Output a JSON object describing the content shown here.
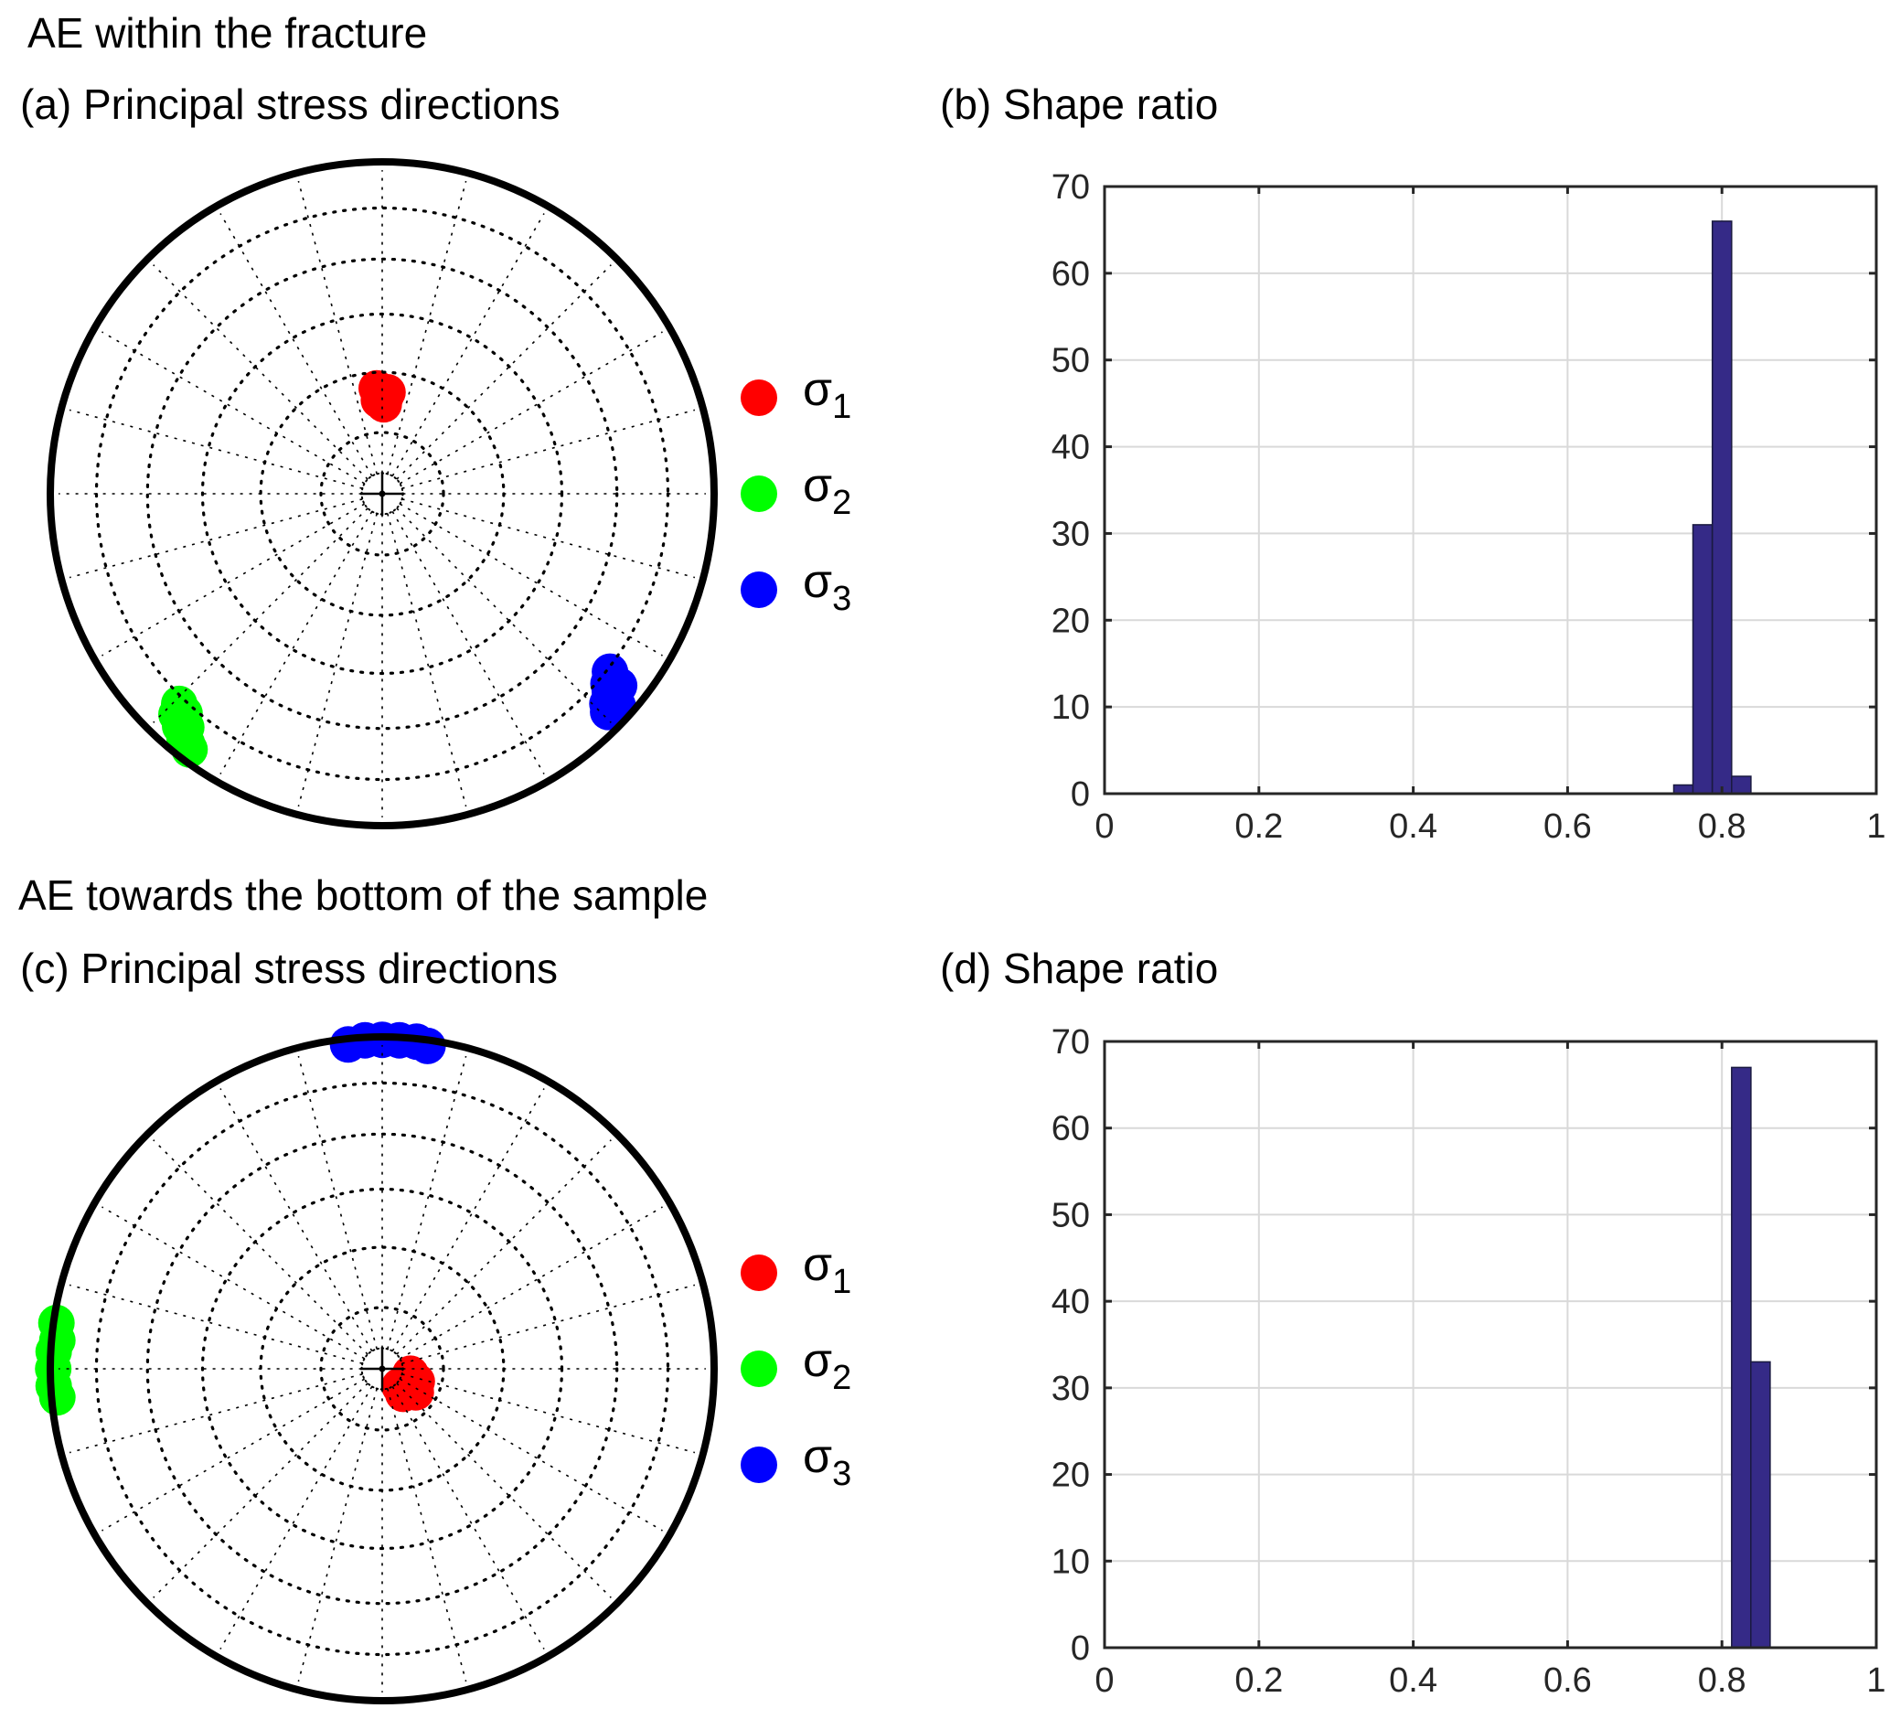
{
  "sections": [
    {
      "title": "AE within the fracture"
    },
    {
      "title": "AE towards the bottom of the sample"
    }
  ],
  "colors": {
    "sigma1": "#ff0000",
    "sigma2": "#00ff00",
    "sigma3": "#0000ff",
    "bar_fill": "#352a87",
    "bar_edge": "#1a1a40",
    "grid": "#d9d9d9",
    "axis": "#262626"
  },
  "chart_data": [
    {
      "id": "a",
      "type": "scatter",
      "subtype": "stereonet-equal-area-lower-hemisphere",
      "title": "(a) Principal stress directions",
      "net": {
        "dip_rings_deg": [
          5,
          15,
          30,
          45,
          60,
          75
        ],
        "radial_lines_every_deg": 15
      },
      "legend": {
        "placement": "right",
        "entries": [
          {
            "symbol": "σ",
            "subscript": "1",
            "color_key": "sigma1"
          },
          {
            "symbol": "σ",
            "subscript": "2",
            "color_key": "sigma2"
          },
          {
            "symbol": "σ",
            "subscript": "3",
            "color_key": "sigma3"
          }
        ]
      },
      "series": [
        {
          "name": "σ1",
          "color_key": "sigma1",
          "points_trend_plunge": [
            [
              359,
              66
            ],
            [
              2,
              66
            ],
            [
              357,
              64
            ],
            [
              1,
              68
            ],
            [
              358,
              67
            ],
            [
              3,
              65
            ]
          ]
        },
        {
          "name": "σ2",
          "color_key": "sigma2",
          "points_trend_plunge": [
            [
              222,
              12
            ],
            [
              221,
              8
            ],
            [
              223,
              10
            ],
            [
              219,
              6
            ],
            [
              220,
              9
            ],
            [
              218,
              5
            ],
            [
              224,
              13
            ],
            [
              217,
              4
            ]
          ]
        },
        {
          "name": "σ3",
          "color_key": "sigma3",
          "points_trend_plunge": [
            [
              128,
              14
            ],
            [
              130,
              12
            ],
            [
              131,
              10
            ],
            [
              133,
              8
            ],
            [
              134,
              6
            ],
            [
              129,
              9
            ],
            [
              132,
              5
            ]
          ]
        }
      ]
    },
    {
      "id": "b",
      "type": "bar",
      "subtype": "histogram",
      "title": "(b) Shape ratio",
      "xlabel": "",
      "ylabel": "",
      "xlim": [
        0,
        1
      ],
      "ylim": [
        0,
        70
      ],
      "xticks": [
        "0",
        "0.2",
        "0.4",
        "0.6",
        "0.8",
        "1"
      ],
      "xtick_values": [
        0,
        0.2,
        0.4,
        0.6,
        0.8,
        1
      ],
      "yticks": [
        "0",
        "10",
        "20",
        "30",
        "40",
        "50",
        "60",
        "70"
      ],
      "ytick_values": [
        0,
        10,
        20,
        30,
        40,
        50,
        60,
        70
      ],
      "grid": true,
      "bin_edges": [
        0.7375,
        0.7625,
        0.7875,
        0.8125,
        0.8375
      ],
      "values": [
        1,
        31,
        66,
        2
      ]
    },
    {
      "id": "c",
      "type": "scatter",
      "subtype": "stereonet-equal-area-lower-hemisphere",
      "title": "(c) Principal stress directions",
      "net": {
        "dip_rings_deg": [
          5,
          15,
          30,
          45,
          60,
          75
        ],
        "radial_lines_every_deg": 15
      },
      "legend": {
        "placement": "right",
        "entries": [
          {
            "symbol": "σ",
            "subscript": "1",
            "color_key": "sigma1"
          },
          {
            "symbol": "σ",
            "subscript": "2",
            "color_key": "sigma2"
          },
          {
            "symbol": "σ",
            "subscript": "3",
            "color_key": "sigma3"
          }
        ]
      },
      "series": [
        {
          "name": "σ1",
          "color_key": "sigma1",
          "points_trend_plunge": [
            [
              135,
              84
            ],
            [
              120,
              82
            ],
            [
              110,
              81
            ],
            [
              125,
              80
            ],
            [
              140,
              82
            ],
            [
              115,
              83
            ],
            [
              100,
              83
            ]
          ]
        },
        {
          "name": "σ2",
          "color_key": "sigma2",
          "points_trend_plunge": [
            [
              275,
              2
            ],
            [
              273,
              1
            ],
            [
              270,
              1
            ],
            [
              267,
              1
            ],
            [
              265,
              2
            ],
            [
              278,
              1
            ]
          ]
        },
        {
          "name": "σ3",
          "color_key": "sigma3",
          "points_trend_plunge": [
            [
              354,
              2
            ],
            [
              357,
              1
            ],
            [
              0,
              1
            ],
            [
              3,
              1
            ],
            [
              6,
              1
            ],
            [
              8,
              2
            ]
          ]
        }
      ]
    },
    {
      "id": "d",
      "type": "bar",
      "subtype": "histogram",
      "title": "(d) Shape ratio",
      "xlabel": "",
      "ylabel": "",
      "xlim": [
        0,
        1
      ],
      "ylim": [
        0,
        70
      ],
      "xticks": [
        "0",
        "0.2",
        "0.4",
        "0.6",
        "0.8",
        "1"
      ],
      "xtick_values": [
        0,
        0.2,
        0.4,
        0.6,
        0.8,
        1
      ],
      "yticks": [
        "0",
        "10",
        "20",
        "30",
        "40",
        "50",
        "60",
        "70"
      ],
      "ytick_values": [
        0,
        10,
        20,
        30,
        40,
        50,
        60,
        70
      ],
      "grid": true,
      "bin_edges": [
        0.8125,
        0.8375,
        0.8625
      ],
      "values": [
        67,
        33
      ]
    }
  ]
}
